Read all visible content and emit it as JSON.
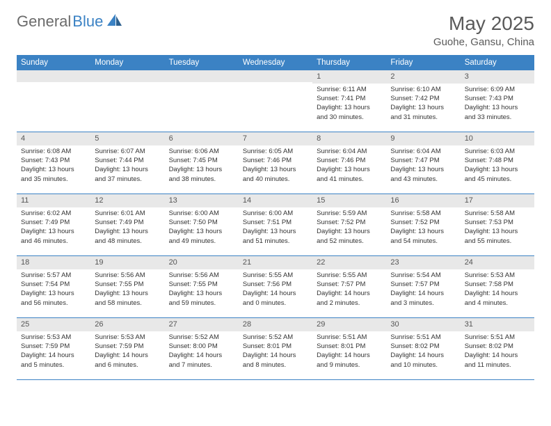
{
  "logo": {
    "gray": "General",
    "blue": "Blue"
  },
  "title": "May 2025",
  "location": "Guohe, Gansu, China",
  "colors": {
    "headerBar": "#3b82c4",
    "dayNumBg": "#e8e8e8",
    "borderColor": "#3b82c4",
    "textColor": "#333333",
    "titleColor": "#5a5a5a",
    "logoGray": "#6b6b6b"
  },
  "dayNames": [
    "Sunday",
    "Monday",
    "Tuesday",
    "Wednesday",
    "Thursday",
    "Friday",
    "Saturday"
  ],
  "weeks": [
    [
      {
        "day": "",
        "empty": true
      },
      {
        "day": "",
        "empty": true
      },
      {
        "day": "",
        "empty": true
      },
      {
        "day": "",
        "empty": true
      },
      {
        "day": "1",
        "sunrise": "Sunrise: 6:11 AM",
        "sunset": "Sunset: 7:41 PM",
        "daylight1": "Daylight: 13 hours",
        "daylight2": "and 30 minutes."
      },
      {
        "day": "2",
        "sunrise": "Sunrise: 6:10 AM",
        "sunset": "Sunset: 7:42 PM",
        "daylight1": "Daylight: 13 hours",
        "daylight2": "and 31 minutes."
      },
      {
        "day": "3",
        "sunrise": "Sunrise: 6:09 AM",
        "sunset": "Sunset: 7:43 PM",
        "daylight1": "Daylight: 13 hours",
        "daylight2": "and 33 minutes."
      }
    ],
    [
      {
        "day": "4",
        "sunrise": "Sunrise: 6:08 AM",
        "sunset": "Sunset: 7:43 PM",
        "daylight1": "Daylight: 13 hours",
        "daylight2": "and 35 minutes."
      },
      {
        "day": "5",
        "sunrise": "Sunrise: 6:07 AM",
        "sunset": "Sunset: 7:44 PM",
        "daylight1": "Daylight: 13 hours",
        "daylight2": "and 37 minutes."
      },
      {
        "day": "6",
        "sunrise": "Sunrise: 6:06 AM",
        "sunset": "Sunset: 7:45 PM",
        "daylight1": "Daylight: 13 hours",
        "daylight2": "and 38 minutes."
      },
      {
        "day": "7",
        "sunrise": "Sunrise: 6:05 AM",
        "sunset": "Sunset: 7:46 PM",
        "daylight1": "Daylight: 13 hours",
        "daylight2": "and 40 minutes."
      },
      {
        "day": "8",
        "sunrise": "Sunrise: 6:04 AM",
        "sunset": "Sunset: 7:46 PM",
        "daylight1": "Daylight: 13 hours",
        "daylight2": "and 41 minutes."
      },
      {
        "day": "9",
        "sunrise": "Sunrise: 6:04 AM",
        "sunset": "Sunset: 7:47 PM",
        "daylight1": "Daylight: 13 hours",
        "daylight2": "and 43 minutes."
      },
      {
        "day": "10",
        "sunrise": "Sunrise: 6:03 AM",
        "sunset": "Sunset: 7:48 PM",
        "daylight1": "Daylight: 13 hours",
        "daylight2": "and 45 minutes."
      }
    ],
    [
      {
        "day": "11",
        "sunrise": "Sunrise: 6:02 AM",
        "sunset": "Sunset: 7:49 PM",
        "daylight1": "Daylight: 13 hours",
        "daylight2": "and 46 minutes."
      },
      {
        "day": "12",
        "sunrise": "Sunrise: 6:01 AM",
        "sunset": "Sunset: 7:49 PM",
        "daylight1": "Daylight: 13 hours",
        "daylight2": "and 48 minutes."
      },
      {
        "day": "13",
        "sunrise": "Sunrise: 6:00 AM",
        "sunset": "Sunset: 7:50 PM",
        "daylight1": "Daylight: 13 hours",
        "daylight2": "and 49 minutes."
      },
      {
        "day": "14",
        "sunrise": "Sunrise: 6:00 AM",
        "sunset": "Sunset: 7:51 PM",
        "daylight1": "Daylight: 13 hours",
        "daylight2": "and 51 minutes."
      },
      {
        "day": "15",
        "sunrise": "Sunrise: 5:59 AM",
        "sunset": "Sunset: 7:52 PM",
        "daylight1": "Daylight: 13 hours",
        "daylight2": "and 52 minutes."
      },
      {
        "day": "16",
        "sunrise": "Sunrise: 5:58 AM",
        "sunset": "Sunset: 7:52 PM",
        "daylight1": "Daylight: 13 hours",
        "daylight2": "and 54 minutes."
      },
      {
        "day": "17",
        "sunrise": "Sunrise: 5:58 AM",
        "sunset": "Sunset: 7:53 PM",
        "daylight1": "Daylight: 13 hours",
        "daylight2": "and 55 minutes."
      }
    ],
    [
      {
        "day": "18",
        "sunrise": "Sunrise: 5:57 AM",
        "sunset": "Sunset: 7:54 PM",
        "daylight1": "Daylight: 13 hours",
        "daylight2": "and 56 minutes."
      },
      {
        "day": "19",
        "sunrise": "Sunrise: 5:56 AM",
        "sunset": "Sunset: 7:55 PM",
        "daylight1": "Daylight: 13 hours",
        "daylight2": "and 58 minutes."
      },
      {
        "day": "20",
        "sunrise": "Sunrise: 5:56 AM",
        "sunset": "Sunset: 7:55 PM",
        "daylight1": "Daylight: 13 hours",
        "daylight2": "and 59 minutes."
      },
      {
        "day": "21",
        "sunrise": "Sunrise: 5:55 AM",
        "sunset": "Sunset: 7:56 PM",
        "daylight1": "Daylight: 14 hours",
        "daylight2": "and 0 minutes."
      },
      {
        "day": "22",
        "sunrise": "Sunrise: 5:55 AM",
        "sunset": "Sunset: 7:57 PM",
        "daylight1": "Daylight: 14 hours",
        "daylight2": "and 2 minutes."
      },
      {
        "day": "23",
        "sunrise": "Sunrise: 5:54 AM",
        "sunset": "Sunset: 7:57 PM",
        "daylight1": "Daylight: 14 hours",
        "daylight2": "and 3 minutes."
      },
      {
        "day": "24",
        "sunrise": "Sunrise: 5:53 AM",
        "sunset": "Sunset: 7:58 PM",
        "daylight1": "Daylight: 14 hours",
        "daylight2": "and 4 minutes."
      }
    ],
    [
      {
        "day": "25",
        "sunrise": "Sunrise: 5:53 AM",
        "sunset": "Sunset: 7:59 PM",
        "daylight1": "Daylight: 14 hours",
        "daylight2": "and 5 minutes."
      },
      {
        "day": "26",
        "sunrise": "Sunrise: 5:53 AM",
        "sunset": "Sunset: 7:59 PM",
        "daylight1": "Daylight: 14 hours",
        "daylight2": "and 6 minutes."
      },
      {
        "day": "27",
        "sunrise": "Sunrise: 5:52 AM",
        "sunset": "Sunset: 8:00 PM",
        "daylight1": "Daylight: 14 hours",
        "daylight2": "and 7 minutes."
      },
      {
        "day": "28",
        "sunrise": "Sunrise: 5:52 AM",
        "sunset": "Sunset: 8:01 PM",
        "daylight1": "Daylight: 14 hours",
        "daylight2": "and 8 minutes."
      },
      {
        "day": "29",
        "sunrise": "Sunrise: 5:51 AM",
        "sunset": "Sunset: 8:01 PM",
        "daylight1": "Daylight: 14 hours",
        "daylight2": "and 9 minutes."
      },
      {
        "day": "30",
        "sunrise": "Sunrise: 5:51 AM",
        "sunset": "Sunset: 8:02 PM",
        "daylight1": "Daylight: 14 hours",
        "daylight2": "and 10 minutes."
      },
      {
        "day": "31",
        "sunrise": "Sunrise: 5:51 AM",
        "sunset": "Sunset: 8:02 PM",
        "daylight1": "Daylight: 14 hours",
        "daylight2": "and 11 minutes."
      }
    ]
  ]
}
